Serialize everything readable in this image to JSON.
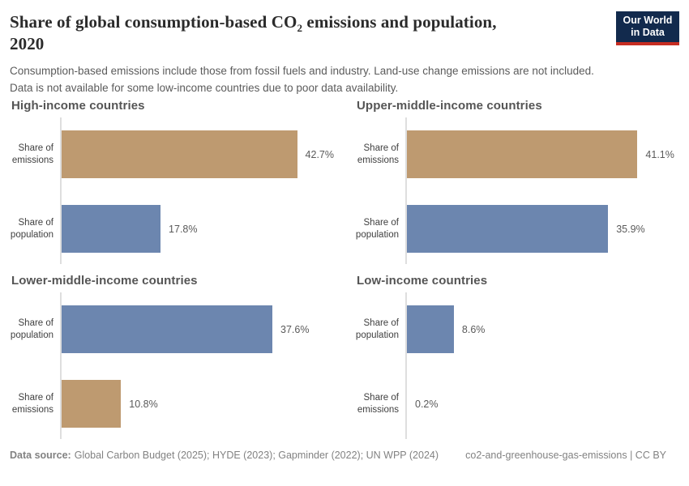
{
  "header": {
    "title": {
      "line1_prefix": "Share of global consumption-based CO",
      "line1_sub": "2",
      "line1_suffix": " emissions and population,",
      "line2": "2020"
    },
    "subtitle_line1": "Consumption-based emissions include those from fossil fuels and industry. Land-use change emissions are not included.",
    "subtitle_line2": "Data is not available for some low-income countries due to poor data availability.",
    "logo": {
      "line1": "Our World",
      "line2": "in Data"
    }
  },
  "colors": {
    "emissions": "#BE9A70",
    "population": "#6C86AF",
    "logo_bg": "#122A4D",
    "logo_stripe": "#C62D22",
    "axis_line": "#DEDEDE",
    "title_text": "#2B2B2B",
    "subtitle_text": "#5B5B5B",
    "panel_title_text": "#555555",
    "tick_label_text": "#3F3F3F",
    "value_label_text": "#5A5A5A",
    "footer_text": "#828282"
  },
  "chart_data": {
    "type": "bar",
    "orientation": "horizontal",
    "unit": "%",
    "xlim": [
      0,
      48.5
    ],
    "grid": false,
    "legend": "none",
    "panels": [
      {
        "title": "High-income countries",
        "bars": [
          {
            "series": "emissions",
            "label_top": "Share of",
            "label_bottom": "emissions",
            "value": 42.7,
            "display": "42.7%"
          },
          {
            "series": "population",
            "label_top": "Share of",
            "label_bottom": "population",
            "value": 17.8,
            "display": "17.8%"
          }
        ]
      },
      {
        "title": "Upper-middle-income countries",
        "bars": [
          {
            "series": "emissions",
            "label_top": "Share of",
            "label_bottom": "emissions",
            "value": 41.1,
            "display": "41.1%"
          },
          {
            "series": "population",
            "label_top": "Share of",
            "label_bottom": "population",
            "value": 35.9,
            "display": "35.9%"
          }
        ]
      },
      {
        "title": "Lower-middle-income countries",
        "bars": [
          {
            "series": "population",
            "label_top": "Share of",
            "label_bottom": "population",
            "value": 37.6,
            "display": "37.6%"
          },
          {
            "series": "emissions",
            "label_top": "Share of",
            "label_bottom": "emissions",
            "value": 10.8,
            "display": "10.8%"
          }
        ]
      },
      {
        "title": "Low-income countries",
        "bars": [
          {
            "series": "population",
            "label_top": "Share of",
            "label_bottom": "population",
            "value": 8.6,
            "display": "8.6%"
          },
          {
            "series": "emissions",
            "label_top": "Share of",
            "label_bottom": "emissions",
            "value": 0.2,
            "display": "0.2%"
          }
        ]
      }
    ]
  },
  "footer": {
    "source_label": "Data source:",
    "sources": "Global Carbon Budget (2025); HYDE (2023); Gapminder (2022); UN WPP (2024)",
    "slug": "co2-and-greenhouse-gas-emissions",
    "separator": "|",
    "license": "CC BY"
  }
}
